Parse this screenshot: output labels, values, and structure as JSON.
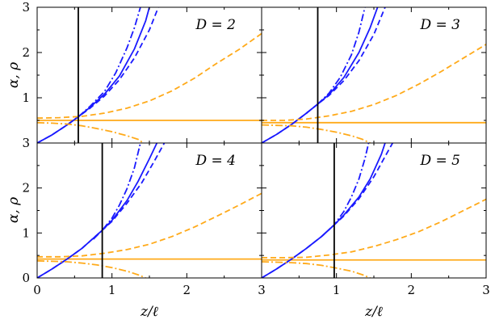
{
  "colors": {
    "alpha": "#1a1aff",
    "rho": "#ffaa1a",
    "vline": "#000000",
    "frame": "#000000"
  },
  "axes": {
    "xlabel": "z/ℓ",
    "ylabel": "α, ρ",
    "xlim": [
      0,
      3
    ],
    "ylim": [
      0,
      3
    ],
    "xtick_labels": [
      "0",
      "1",
      "2",
      "3"
    ],
    "ytick_labels": [
      "0",
      "1",
      "2",
      "3"
    ]
  },
  "chart_data": [
    {
      "type": "line",
      "label": "D = 2",
      "vline_x": 0.55,
      "rho_const": 0.5,
      "series": [
        {
          "line": "alpha-solid",
          "x": [
            0,
            0.2,
            0.4,
            0.55,
            0.7,
            0.9,
            1.1,
            1.3,
            1.45,
            1.5
          ],
          "y": [
            0,
            0.18,
            0.4,
            0.58,
            0.78,
            1.08,
            1.48,
            2.08,
            2.7,
            3.0
          ]
        },
        {
          "line": "alpha-dashed",
          "x": [
            0,
            0.2,
            0.4,
            0.55,
            0.7,
            0.9,
            1.1,
            1.3,
            1.5,
            1.62
          ],
          "y": [
            0,
            0.18,
            0.4,
            0.58,
            0.76,
            1.04,
            1.4,
            1.88,
            2.5,
            3.0
          ]
        },
        {
          "line": "alpha-dashdot",
          "x": [
            0.4,
            0.55,
            0.7,
            0.9,
            1.05,
            1.2,
            1.3,
            1.38
          ],
          "y": [
            0.4,
            0.58,
            0.8,
            1.14,
            1.55,
            2.1,
            2.55,
            3.0
          ]
        },
        {
          "line": "rho-dashed",
          "x": [
            0,
            0.3,
            0.6,
            0.9,
            1.2,
            1.5,
            1.8,
            2.1,
            2.4,
            2.7,
            3.0
          ],
          "y": [
            0.55,
            0.56,
            0.59,
            0.66,
            0.77,
            0.93,
            1.15,
            1.43,
            1.76,
            2.07,
            2.42
          ]
        },
        {
          "line": "rho-dashdot",
          "x": [
            0,
            0.2,
            0.4,
            0.6,
            0.8,
            1.0,
            1.2,
            1.35,
            1.42
          ],
          "y": [
            0.45,
            0.44,
            0.42,
            0.38,
            0.32,
            0.25,
            0.16,
            0.08,
            0.0
          ]
        }
      ]
    },
    {
      "type": "line",
      "label": "D = 3",
      "vline_x": 0.75,
      "rho_const": 0.45,
      "series": [
        {
          "line": "alpha-solid",
          "x": [
            0,
            0.2,
            0.4,
            0.6,
            0.75,
            0.9,
            1.1,
            1.3,
            1.45,
            1.55
          ],
          "y": [
            0,
            0.19,
            0.41,
            0.66,
            0.86,
            1.07,
            1.45,
            2.0,
            2.55,
            3.0
          ]
        },
        {
          "line": "alpha-dashed",
          "x": [
            0,
            0.2,
            0.4,
            0.6,
            0.75,
            0.9,
            1.1,
            1.3,
            1.5,
            1.65
          ],
          "y": [
            0,
            0.19,
            0.41,
            0.66,
            0.86,
            1.05,
            1.38,
            1.82,
            2.4,
            3.0
          ]
        },
        {
          "line": "alpha-dashdot",
          "x": [
            0.6,
            0.75,
            0.9,
            1.05,
            1.2,
            1.3,
            1.38
          ],
          "y": [
            0.66,
            0.86,
            1.1,
            1.45,
            1.95,
            2.45,
            3.0
          ]
        },
        {
          "line": "rho-dashed",
          "x": [
            0,
            0.3,
            0.6,
            0.9,
            1.2,
            1.5,
            1.8,
            2.1,
            2.4,
            2.7,
            3.0
          ],
          "y": [
            0.5,
            0.5,
            0.53,
            0.6,
            0.7,
            0.85,
            1.05,
            1.3,
            1.58,
            1.88,
            2.18
          ]
        },
        {
          "line": "rho-dashdot",
          "x": [
            0,
            0.2,
            0.4,
            0.6,
            0.8,
            1.0,
            1.2,
            1.35,
            1.45
          ],
          "y": [
            0.4,
            0.39,
            0.38,
            0.35,
            0.3,
            0.24,
            0.16,
            0.08,
            0.0
          ]
        }
      ]
    },
    {
      "type": "line",
      "label": "D = 4",
      "vline_x": 0.87,
      "rho_const": 0.42,
      "series": [
        {
          "line": "alpha-solid",
          "x": [
            0,
            0.2,
            0.4,
            0.6,
            0.87,
            1.0,
            1.2,
            1.35,
            1.5,
            1.6
          ],
          "y": [
            0,
            0.2,
            0.42,
            0.66,
            1.06,
            1.28,
            1.72,
            2.15,
            2.65,
            3.0
          ]
        },
        {
          "line": "alpha-dashed",
          "x": [
            0,
            0.2,
            0.4,
            0.6,
            0.87,
            1.0,
            1.2,
            1.4,
            1.55,
            1.7
          ],
          "y": [
            0,
            0.2,
            0.42,
            0.66,
            1.06,
            1.26,
            1.66,
            2.12,
            2.55,
            3.0
          ]
        },
        {
          "line": "alpha-dashdot",
          "x": [
            0.75,
            0.87,
            1.0,
            1.1,
            1.2,
            1.3,
            1.38
          ],
          "y": [
            0.86,
            1.06,
            1.33,
            1.62,
            1.98,
            2.45,
            3.0
          ]
        },
        {
          "line": "rho-dashed",
          "x": [
            0,
            0.3,
            0.6,
            0.9,
            1.2,
            1.5,
            1.8,
            2.1,
            2.4,
            2.7,
            3.0
          ],
          "y": [
            0.47,
            0.47,
            0.49,
            0.55,
            0.63,
            0.75,
            0.92,
            1.13,
            1.37,
            1.62,
            1.88
          ]
        },
        {
          "line": "rho-dashdot",
          "x": [
            0,
            0.2,
            0.4,
            0.6,
            0.8,
            1.0,
            1.2,
            1.35,
            1.45
          ],
          "y": [
            0.38,
            0.37,
            0.36,
            0.33,
            0.29,
            0.23,
            0.15,
            0.07,
            0.0
          ]
        }
      ]
    },
    {
      "type": "line",
      "label": "D = 5",
      "vline_x": 0.97,
      "rho_const": 0.4,
      "series": [
        {
          "line": "alpha-solid",
          "x": [
            0,
            0.2,
            0.4,
            0.6,
            0.8,
            0.97,
            1.1,
            1.3,
            1.45,
            1.6,
            1.65
          ],
          "y": [
            0,
            0.2,
            0.42,
            0.66,
            0.92,
            1.18,
            1.4,
            1.8,
            2.2,
            2.75,
            3.0
          ]
        },
        {
          "line": "alpha-dashed",
          "x": [
            0,
            0.2,
            0.4,
            0.6,
            0.8,
            0.97,
            1.1,
            1.3,
            1.5,
            1.65,
            1.75
          ],
          "y": [
            0,
            0.2,
            0.42,
            0.66,
            0.92,
            1.18,
            1.38,
            1.76,
            2.25,
            2.7,
            3.0
          ]
        },
        {
          "line": "alpha-dashdot",
          "x": [
            0.8,
            0.97,
            1.1,
            1.2,
            1.3,
            1.38,
            1.43
          ],
          "y": [
            0.92,
            1.18,
            1.48,
            1.8,
            2.2,
            2.65,
            3.0
          ]
        },
        {
          "line": "rho-dashed",
          "x": [
            0,
            0.3,
            0.6,
            0.9,
            1.2,
            1.5,
            1.8,
            2.1,
            2.4,
            2.7,
            3.0
          ],
          "y": [
            0.45,
            0.45,
            0.46,
            0.51,
            0.58,
            0.7,
            0.85,
            1.03,
            1.25,
            1.5,
            1.75
          ]
        },
        {
          "line": "rho-dashdot",
          "x": [
            0,
            0.2,
            0.4,
            0.6,
            0.8,
            1.0,
            1.2,
            1.35,
            1.45
          ],
          "y": [
            0.36,
            0.35,
            0.34,
            0.32,
            0.28,
            0.22,
            0.15,
            0.07,
            0.0
          ]
        }
      ]
    }
  ]
}
